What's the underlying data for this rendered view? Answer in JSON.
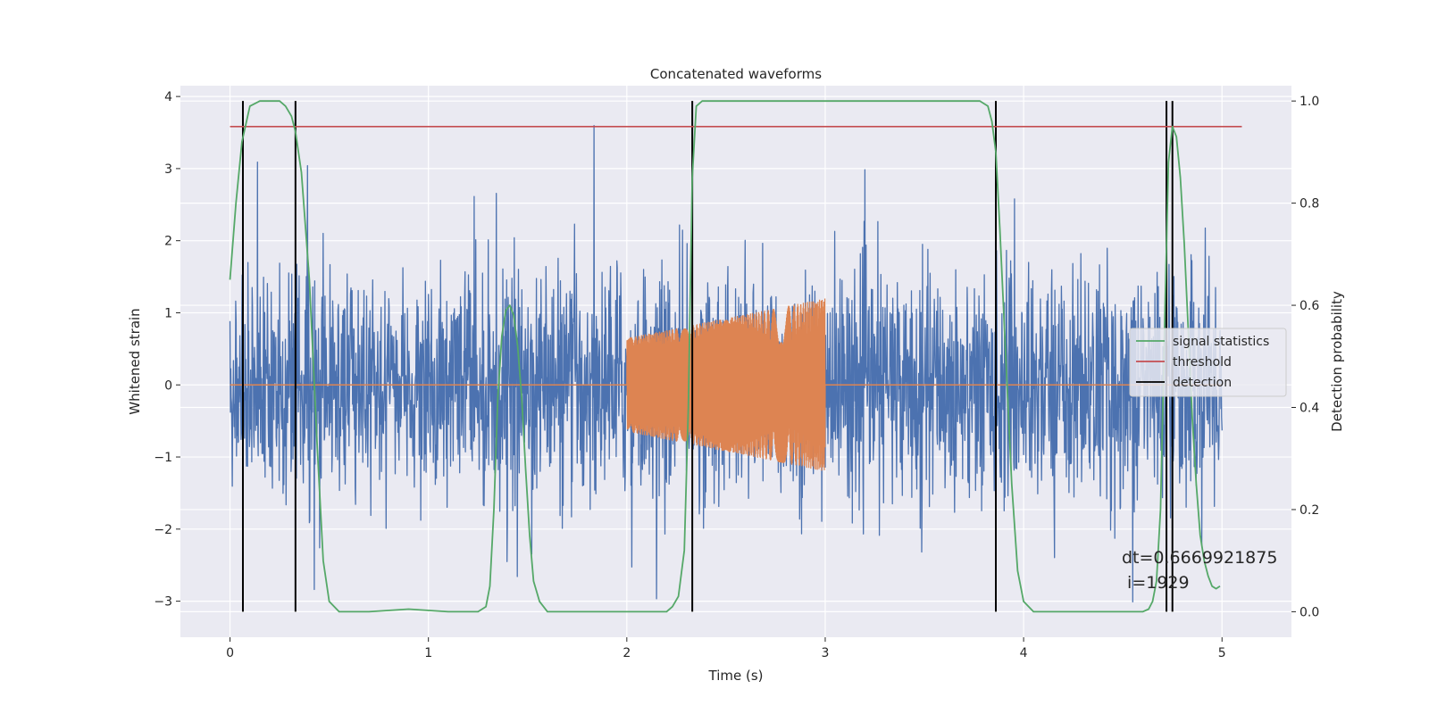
{
  "chart_data": {
    "type": "line",
    "title": "Concatenated waveforms",
    "xlabel": "Time (s)",
    "ylabel": "Whitened strain",
    "ylabel_right": "Detection probability",
    "xlim": [
      -0.25,
      5.35
    ],
    "ylim": [
      -3.5,
      4.15
    ],
    "ylim_right": [
      -0.05,
      1.03
    ],
    "x_ticks": [
      0,
      1,
      2,
      3,
      4,
      5
    ],
    "x_tick_labels": [
      "0",
      "1",
      "2",
      "3",
      "4",
      "5"
    ],
    "y_ticks": [
      -3,
      -2,
      -1,
      0,
      1,
      2,
      3,
      4
    ],
    "y_tick_labels": [
      "−3",
      "−2",
      "−1",
      "0",
      "1",
      "2",
      "3",
      "4"
    ],
    "y_right_ticks": [
      0.0,
      0.2,
      0.4,
      0.6,
      0.8,
      1.0
    ],
    "y_right_tick_labels": [
      "0.0",
      "0.2",
      "0.4",
      "0.6",
      "0.8",
      "1.0"
    ],
    "grid": true,
    "legend": {
      "placement": "center-right",
      "entries": [
        {
          "label": "signal statistics",
          "color": "#55a868"
        },
        {
          "label": "threshold",
          "color": "#c44e52"
        },
        {
          "label": "detection",
          "color": "#000000"
        }
      ]
    },
    "series": [
      {
        "kind": "noise_strain",
        "axis": "left",
        "color": "#4c72b0",
        "x_range": [
          0,
          5
        ],
        "typical_amplitude": 1.5,
        "peak_amplitude": 3.8
      },
      {
        "kind": "injected_chirp",
        "axis": "left",
        "color": "#dd8452",
        "x_range": [
          2,
          3
        ],
        "amplitude_start": 0.65,
        "amplitude_end": 1.2,
        "zero_line_x_range": [
          0,
          5
        ]
      },
      {
        "name": "signal statistics",
        "axis": "right",
        "color": "#55a868",
        "x": [
          0.0,
          0.03,
          0.06,
          0.1,
          0.15,
          0.2,
          0.25,
          0.28,
          0.31,
          0.33,
          0.36,
          0.4,
          0.44,
          0.47,
          0.5,
          0.55,
          0.7,
          0.9,
          1.1,
          1.25,
          1.29,
          1.31,
          1.33,
          1.35,
          1.37,
          1.39,
          1.41,
          1.43,
          1.45,
          1.47,
          1.49,
          1.51,
          1.53,
          1.56,
          1.6,
          1.8,
          2.1,
          2.2,
          2.23,
          2.26,
          2.29,
          2.31,
          2.33,
          2.35,
          2.38,
          2.42,
          2.6,
          3.0,
          3.5,
          3.78,
          3.82,
          3.84,
          3.86,
          3.88,
          3.91,
          3.94,
          3.97,
          4.0,
          4.05,
          4.2,
          4.4,
          4.55,
          4.6,
          4.63,
          4.65,
          4.67,
          4.69,
          4.71,
          4.73,
          4.75,
          4.77,
          4.79,
          4.81,
          4.83,
          4.85,
          4.87,
          4.89,
          4.91,
          4.93,
          4.95,
          4.97,
          4.99
        ],
        "y": [
          0.65,
          0.8,
          0.92,
          0.99,
          1.0,
          1.0,
          1.0,
          0.99,
          0.97,
          0.94,
          0.86,
          0.65,
          0.32,
          0.1,
          0.02,
          0.0,
          0.0,
          0.005,
          0.0,
          0.0,
          0.01,
          0.05,
          0.2,
          0.42,
          0.54,
          0.59,
          0.6,
          0.58,
          0.52,
          0.42,
          0.28,
          0.15,
          0.06,
          0.02,
          0.0,
          0.0,
          0.0,
          0.0,
          0.01,
          0.03,
          0.12,
          0.4,
          0.85,
          0.99,
          1.0,
          1.0,
          1.0,
          1.0,
          1.0,
          1.0,
          0.99,
          0.96,
          0.9,
          0.75,
          0.5,
          0.25,
          0.08,
          0.02,
          0.0,
          0.0,
          0.0,
          0.0,
          0.0,
          0.005,
          0.02,
          0.06,
          0.2,
          0.55,
          0.88,
          0.95,
          0.93,
          0.85,
          0.72,
          0.55,
          0.38,
          0.25,
          0.15,
          0.1,
          0.07,
          0.05,
          0.045,
          0.05
        ]
      },
      {
        "name": "threshold",
        "axis": "right",
        "color": "#c44e52",
        "x": [
          0,
          5.1
        ],
        "y": [
          0.95,
          0.95
        ]
      }
    ],
    "detections": {
      "label": "detection",
      "color": "#000000",
      "x": [
        0.065,
        0.33,
        2.33,
        3.86,
        4.72,
        4.75
      ]
    },
    "annotation": {
      "line1": "dt=0.6669921875",
      "line2": " i=1929"
    }
  }
}
